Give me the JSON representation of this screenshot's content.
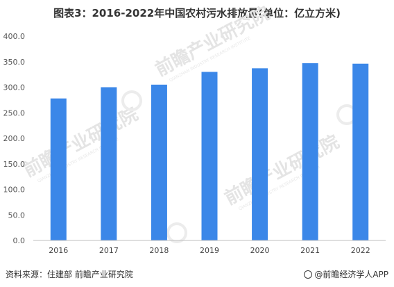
{
  "title": "图表3：2016-2022年中国农村污水排放量(单位：亿立方米)",
  "footer": {
    "source": "资料来源：住建部 前瞻产业研究院",
    "brand": "@前瞻经济学人APP",
    "brand_logo_icon": "qianzhan-logo-icon"
  },
  "watermark": {
    "text": "前瞻产业研究院",
    "subtext": "QIANZHAN INDUSTRY RESEARCH INSTITUTE"
  },
  "chart_data": {
    "type": "bar",
    "categories": [
      "2016",
      "2017",
      "2018",
      "2019",
      "2020",
      "2021",
      "2022"
    ],
    "values": [
      278,
      300,
      305,
      330,
      337,
      347,
      346
    ],
    "ylim": [
      0,
      400
    ],
    "yticks": [
      0,
      50,
      100,
      150,
      200,
      250,
      300,
      350,
      400
    ],
    "ytick_labels": [
      "0.0",
      "50.0",
      "100.0",
      "150.0",
      "200.0",
      "250.0",
      "300.0",
      "350.0",
      "400.0"
    ],
    "xlabel": "",
    "ylabel": "",
    "grid": false,
    "bar_color": "#3b87e8",
    "axis_color": "#bfbfbf"
  }
}
